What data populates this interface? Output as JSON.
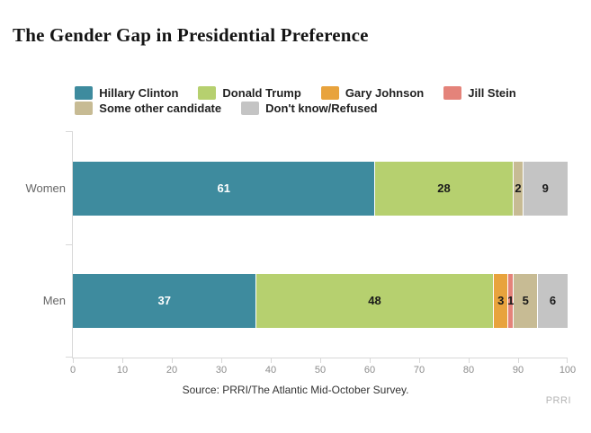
{
  "title": "The Gender Gap in Presidential Preference",
  "source": "Source: PRRI/The Atlantic Mid-October Survey.",
  "watermark": "PRRI",
  "chart_data": {
    "type": "bar",
    "orientation": "horizontal",
    "stacked": true,
    "title": "The Gender Gap in Presidential Preference",
    "categories": [
      "Women",
      "Men"
    ],
    "series": [
      {
        "name": "Hillary Clinton",
        "color": "#3e8b9e",
        "label_color": "#ffffff",
        "values": [
          61,
          37
        ]
      },
      {
        "name": "Donald Trump",
        "color": "#b6d06f",
        "label_color": "#1a1a1a",
        "values": [
          28,
          48
        ]
      },
      {
        "name": "Gary Johnson",
        "color": "#e8a33d",
        "label_color": "#1a1a1a",
        "values": [
          0,
          3
        ]
      },
      {
        "name": "Jill Stein",
        "color": "#e4837a",
        "label_color": "#1a1a1a",
        "values": [
          0,
          1
        ]
      },
      {
        "name": "Some other candidate",
        "color": "#c7bb94",
        "label_color": "#1a1a1a",
        "values": [
          2,
          5
        ]
      },
      {
        "name": "Don't know/Refused",
        "color": "#c4c4c4",
        "label_color": "#1a1a1a",
        "values": [
          9,
          6
        ]
      }
    ],
    "xlim": [
      0,
      100
    ],
    "x_ticks": [
      0,
      10,
      20,
      30,
      40,
      50,
      60,
      70,
      80,
      90,
      100
    ],
    "xlabel": "",
    "ylabel": "",
    "grid": false,
    "legend_position": "top",
    "legend_rows": [
      [
        0,
        1,
        2,
        3
      ],
      [
        4,
        5
      ]
    ],
    "axis_color": "#d8d8d8",
    "tick_label_color": "#8c8c8c",
    "category_label_color": "#666666"
  }
}
